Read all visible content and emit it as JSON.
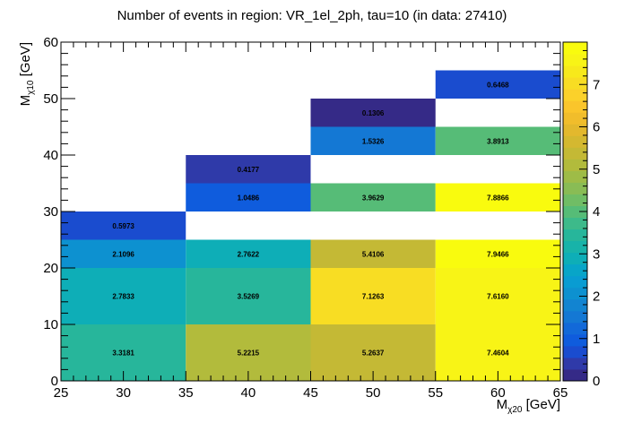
{
  "chart_data": {
    "type": "heatmap",
    "title": "Number of events in region: VR_1el_2ph, tau=10 (in data: 27410)",
    "xlabel": {
      "main": "M",
      "sub": "χ20",
      "unit": " [GeV]"
    },
    "ylabel": {
      "main": "M",
      "sub": "χ10",
      "unit": " [GeV]"
    },
    "xlim": [
      25,
      65
    ],
    "ylim": [
      0,
      60
    ],
    "zlim": [
      0,
      8
    ],
    "x_ticks": [
      25,
      30,
      35,
      40,
      45,
      50,
      55,
      60,
      65
    ],
    "y_ticks": [
      0,
      10,
      20,
      30,
      40,
      50,
      60
    ],
    "z_ticks": [
      0,
      1,
      2,
      3,
      4,
      5,
      6,
      7
    ],
    "grid": false,
    "cells": [
      {
        "x0": 25,
        "x1": 35,
        "y0": 0,
        "y1": 10,
        "value": 3.3181,
        "label": "3.3181"
      },
      {
        "x0": 35,
        "x1": 45,
        "y0": 0,
        "y1": 10,
        "value": 5.2215,
        "label": "5.2215"
      },
      {
        "x0": 45,
        "x1": 55,
        "y0": 0,
        "y1": 10,
        "value": 5.2637,
        "label": "5.2637"
      },
      {
        "x0": 55,
        "x1": 65,
        "y0": 0,
        "y1": 10,
        "value": 7.4604,
        "label": "7.4604"
      },
      {
        "x0": 25,
        "x1": 35,
        "y0": 10,
        "y1": 20,
        "value": 2.7833,
        "label": "2.7833"
      },
      {
        "x0": 35,
        "x1": 45,
        "y0": 10,
        "y1": 20,
        "value": 3.5269,
        "label": "3.5269"
      },
      {
        "x0": 45,
        "x1": 55,
        "y0": 10,
        "y1": 20,
        "value": 7.1263,
        "label": "7.1263"
      },
      {
        "x0": 55,
        "x1": 65,
        "y0": 10,
        "y1": 20,
        "value": 7.616,
        "label": "7.6160"
      },
      {
        "x0": 25,
        "x1": 35,
        "y0": 20,
        "y1": 25,
        "value": 2.1096,
        "label": "2.1096"
      },
      {
        "x0": 35,
        "x1": 45,
        "y0": 20,
        "y1": 25,
        "value": 2.7622,
        "label": "2.7622"
      },
      {
        "x0": 45,
        "x1": 55,
        "y0": 20,
        "y1": 25,
        "value": 5.4106,
        "label": "5.4106"
      },
      {
        "x0": 55,
        "x1": 65,
        "y0": 20,
        "y1": 25,
        "value": 7.9466,
        "label": "7.9466"
      },
      {
        "x0": 25,
        "x1": 35,
        "y0": 25,
        "y1": 30,
        "value": 0.5973,
        "label": "0.5973"
      },
      {
        "x0": 35,
        "x1": 45,
        "y0": 30,
        "y1": 35,
        "value": 1.0486,
        "label": "1.0486"
      },
      {
        "x0": 45,
        "x1": 55,
        "y0": 30,
        "y1": 35,
        "value": 3.9629,
        "label": "3.9629"
      },
      {
        "x0": 55,
        "x1": 65,
        "y0": 30,
        "y1": 35,
        "value": 7.8866,
        "label": "7.8866"
      },
      {
        "x0": 35,
        "x1": 45,
        "y0": 35,
        "y1": 40,
        "value": 0.4177,
        "label": "0.4177"
      },
      {
        "x0": 45,
        "x1": 55,
        "y0": 40,
        "y1": 45,
        "value": 1.5326,
        "label": "1.5326"
      },
      {
        "x0": 55,
        "x1": 65,
        "y0": 40,
        "y1": 45,
        "value": 3.8913,
        "label": "3.8913"
      },
      {
        "x0": 45,
        "x1": 55,
        "y0": 45,
        "y1": 50,
        "value": 0.1306,
        "label": "0.1306"
      },
      {
        "x0": 55,
        "x1": 65,
        "y0": 50,
        "y1": 55,
        "value": 0.6468,
        "label": "0.6468"
      }
    ],
    "palette": [
      "#352a87",
      "#2f3aa9",
      "#1a4ccf",
      "#0f5cdd",
      "#1269d9",
      "#1478d4",
      "#1284d1",
      "#0d91d0",
      "#099cd2",
      "#08a5c8",
      "#0eaeb7",
      "#18b3a9",
      "#27b69b",
      "#3dba8a",
      "#56bc77",
      "#70bd65",
      "#89bc55",
      "#9ebc47",
      "#b2bb3c",
      "#c4b935",
      "#d4b830",
      "#e3b82d",
      "#f1bd2b",
      "#fac52b",
      "#fbd12a",
      "#f8dd23",
      "#f7e91b",
      "#f8f416",
      "#f9fb0e"
    ]
  }
}
